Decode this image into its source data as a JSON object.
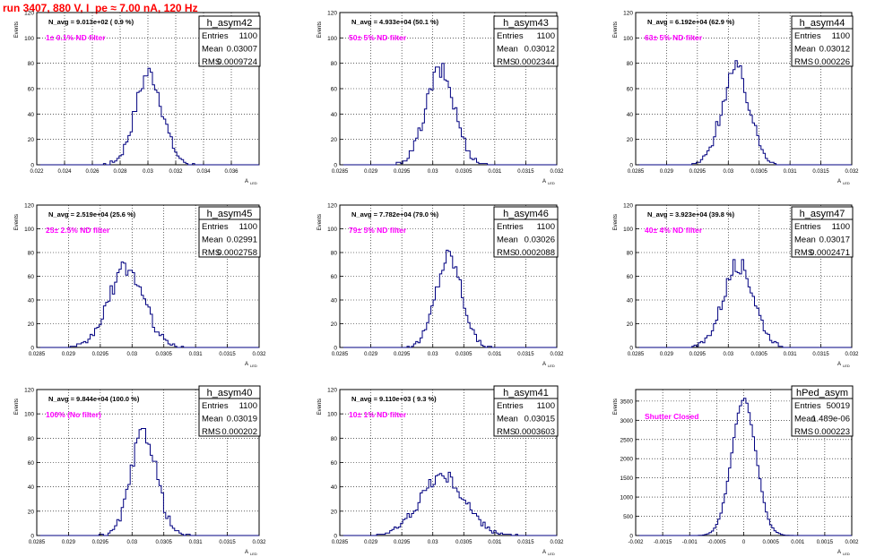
{
  "title": "run 3407,   880 V, I_pe ≈ 7.00 nA, 120 Hz",
  "colors": {
    "title": "#ff0000",
    "histogram": "#000080",
    "filter_label": "#ff00ff",
    "grid": "#000000"
  },
  "ylabel": "Events",
  "xlabel": "A",
  "xlabel_sub": "LED",
  "chart_data": [
    {
      "type": "histogram",
      "name": "h_asym42",
      "stats": {
        "entries_label": "Entries",
        "entries": "1100",
        "mean_label": "Mean",
        "mean": "0.03007",
        "rms_label": "RMS",
        "rms": "0.0009724"
      },
      "nav": "N_avg = 9.013e+02 ( 0.9 %)",
      "filter": "1± 0.1% ND filter",
      "xlim": [
        0.022,
        0.038
      ],
      "ylim": [
        0,
        120
      ],
      "xticks": [
        "0.022",
        "0.024",
        "0.026",
        "0.028",
        "0.03",
        "0.032",
        "0.034",
        "0.036"
      ],
      "xtick_vals": [
        0.022,
        0.024,
        0.026,
        0.028,
        0.03,
        0.032,
        0.034,
        0.036
      ],
      "yticks": [
        0,
        20,
        40,
        60,
        80,
        100,
        120
      ],
      "mean_value": 0.03007,
      "rms_value": 0.0009724,
      "peak": 72,
      "entries": 1100
    },
    {
      "type": "histogram",
      "name": "h_asym43",
      "stats": {
        "entries_label": "Entries",
        "entries": "1100",
        "mean_label": "Mean",
        "mean": "0.03012",
        "rms_label": "RMS",
        "rms": "0.0002344"
      },
      "nav": "N_avg = 4.933e+04 (50.1 %)",
      "filter": "50± 5% ND filter",
      "xlim": [
        0.0285,
        0.032
      ],
      "ylim": [
        0,
        120
      ],
      "xticks": [
        "0.0285",
        "0.029",
        "0.0295",
        "0.03",
        "0.0305",
        "0.031",
        "0.0315",
        "0.032"
      ],
      "xtick_vals": [
        0.0285,
        0.029,
        0.0295,
        0.03,
        0.0305,
        0.031,
        0.0315,
        0.032
      ],
      "yticks": [
        0,
        20,
        40,
        60,
        80,
        100,
        120
      ],
      "mean_value": 0.03012,
      "rms_value": 0.0002344,
      "peak": 74,
      "entries": 1100
    },
    {
      "type": "histogram",
      "name": "h_asym44",
      "stats": {
        "entries_label": "Entries",
        "entries": "1100",
        "mean_label": "Mean",
        "mean": "0.03012",
        "rms_label": "RMS",
        "rms": "0.000226"
      },
      "nav": "N_avg = 6.192e+04 (62.9 %)",
      "filter": "63± 5% ND filter",
      "xlim": [
        0.0285,
        0.032
      ],
      "ylim": [
        0,
        120
      ],
      "xticks": [
        "0.0285",
        "0.029",
        "0.0295",
        "0.03",
        "0.0305",
        "0.031",
        "0.0315",
        "0.032"
      ],
      "xtick_vals": [
        0.0285,
        0.029,
        0.0295,
        0.03,
        0.0305,
        0.031,
        0.0315,
        0.032
      ],
      "yticks": [
        0,
        20,
        40,
        60,
        80,
        100,
        120
      ],
      "mean_value": 0.03012,
      "rms_value": 0.000226,
      "peak": 75,
      "entries": 1100
    },
    {
      "type": "histogram",
      "name": "h_asym45",
      "stats": {
        "entries_label": "Entries",
        "entries": "1100",
        "mean_label": "Mean",
        "mean": "0.02991",
        "rms_label": "RMS",
        "rms": "0.0002758"
      },
      "nav": "N_avg = 2.519e+04 (25.6 %)",
      "filter": "25± 2.5% ND filter",
      "xlim": [
        0.0285,
        0.032
      ],
      "ylim": [
        0,
        120
      ],
      "xticks": [
        "0.0285",
        "0.029",
        "0.0295",
        "0.03",
        "0.0305",
        "0.031",
        "0.0315",
        "0.032"
      ],
      "xtick_vals": [
        0.0285,
        0.029,
        0.0295,
        0.03,
        0.0305,
        0.031,
        0.0315,
        0.032
      ],
      "yticks": [
        0,
        20,
        40,
        60,
        80,
        100,
        120
      ],
      "mean_value": 0.02991,
      "rms_value": 0.0002758,
      "peak": 67,
      "entries": 1100
    },
    {
      "type": "histogram",
      "name": "h_asym46",
      "stats": {
        "entries_label": "Entries",
        "entries": "1100",
        "mean_label": "Mean",
        "mean": "0.03026",
        "rms_label": "RMS",
        "rms": "0.0002088"
      },
      "nav": "N_avg = 7.782e+04 (79.0 %)",
      "filter": "79± 5% ND filter",
      "xlim": [
        0.0285,
        0.032
      ],
      "ylim": [
        0,
        120
      ],
      "xticks": [
        "0.0285",
        "0.029",
        "0.0295",
        "0.03",
        "0.0305",
        "0.031",
        "0.0315",
        "0.032"
      ],
      "xtick_vals": [
        0.0285,
        0.029,
        0.0295,
        0.03,
        0.0305,
        0.031,
        0.0315,
        0.032
      ],
      "yticks": [
        0,
        20,
        40,
        60,
        80,
        100,
        120
      ],
      "mean_value": 0.03026,
      "rms_value": 0.0002088,
      "peak": 77,
      "entries": 1100
    },
    {
      "type": "histogram",
      "name": "h_asym47",
      "stats": {
        "entries_label": "Entries",
        "entries": "1100",
        "mean_label": "Mean",
        "mean": "0.03017",
        "rms_label": "RMS",
        "rms": "0.0002471"
      },
      "nav": "N_avg = 3.923e+04 (39.8 %)",
      "filter": "40± 4% ND filter",
      "xlim": [
        0.0285,
        0.032
      ],
      "ylim": [
        0,
        120
      ],
      "xticks": [
        "0.0285",
        "0.029",
        "0.0295",
        "0.03",
        "0.0305",
        "0.031",
        "0.0315",
        "0.032"
      ],
      "xtick_vals": [
        0.0285,
        0.029,
        0.0295,
        0.03,
        0.0305,
        0.031,
        0.0315,
        0.032
      ],
      "yticks": [
        0,
        20,
        40,
        60,
        80,
        100,
        120
      ],
      "mean_value": 0.03017,
      "rms_value": 0.0002471,
      "peak": 70,
      "entries": 1100
    },
    {
      "type": "histogram",
      "name": "h_asym40",
      "stats": {
        "entries_label": "Entries",
        "entries": "1100",
        "mean_label": "Mean",
        "mean": "0.03019",
        "rms_label": "RMS",
        "rms": "0.000202"
      },
      "nav": "N_avg = 9.844e+04 (100.0 %)",
      "filter": "100% (No filter)",
      "xlim": [
        0.0285,
        0.032
      ],
      "ylim": [
        0,
        120
      ],
      "xticks": [
        "0.0285",
        "0.029",
        "0.0295",
        "0.03",
        "0.0305",
        "0.031",
        "0.0315",
        "0.032"
      ],
      "xtick_vals": [
        0.0285,
        0.029,
        0.0295,
        0.03,
        0.0305,
        0.031,
        0.0315,
        0.032
      ],
      "yticks": [
        0,
        20,
        40,
        60,
        80,
        100,
        120
      ],
      "mean_value": 0.03019,
      "rms_value": 0.000202,
      "peak": 85,
      "entries": 1100
    },
    {
      "type": "histogram",
      "name": "h_asym41",
      "stats": {
        "entries_label": "Entries",
        "entries": "1100",
        "mean_label": "Mean",
        "mean": "0.03015",
        "rms_label": "RMS",
        "rms": "0.0003603"
      },
      "nav": "N_avg = 9.110e+03 ( 9.3 %)",
      "filter": "10± 1% ND filter",
      "xlim": [
        0.0285,
        0.032
      ],
      "ylim": [
        0,
        120
      ],
      "xticks": [
        "0.0285",
        "0.029",
        "0.0295",
        "0.03",
        "0.0305",
        "0.031",
        "0.0315",
        "0.032"
      ],
      "xtick_vals": [
        0.0285,
        0.029,
        0.0295,
        0.03,
        0.0305,
        0.031,
        0.0315,
        0.032
      ],
      "yticks": [
        0,
        20,
        40,
        60,
        80,
        100,
        120
      ],
      "mean_value": 0.03015,
      "rms_value": 0.0003603,
      "peak": 49,
      "entries": 1100
    },
    {
      "type": "histogram",
      "name": "hPed_asym",
      "stats": {
        "entries_label": "Entries",
        "entries": "50019",
        "mean_label": "Mean",
        "mean": "1.489e-06",
        "rms_label": "RMS",
        "rms": "0.000223"
      },
      "nav": "",
      "filter": "Shutter Closed",
      "xlim": [
        -0.002,
        0.002
      ],
      "ylim": [
        0,
        3800
      ],
      "xticks": [
        "-0.002",
        "-0.0015",
        "-0.001",
        "-0.0005",
        "0",
        "0.0005",
        "0.001",
        "0.0015",
        "0.002"
      ],
      "xtick_vals": [
        -0.002,
        -0.0015,
        -0.001,
        -0.0005,
        0,
        0.0005,
        0.001,
        0.0015,
        0.002
      ],
      "yticks": [
        0,
        500,
        1000,
        1500,
        2000,
        2500,
        3000,
        3500
      ],
      "mean_value": 1.5e-06,
      "rms_value": 0.000223,
      "peak": 3560,
      "entries": 50019
    }
  ]
}
